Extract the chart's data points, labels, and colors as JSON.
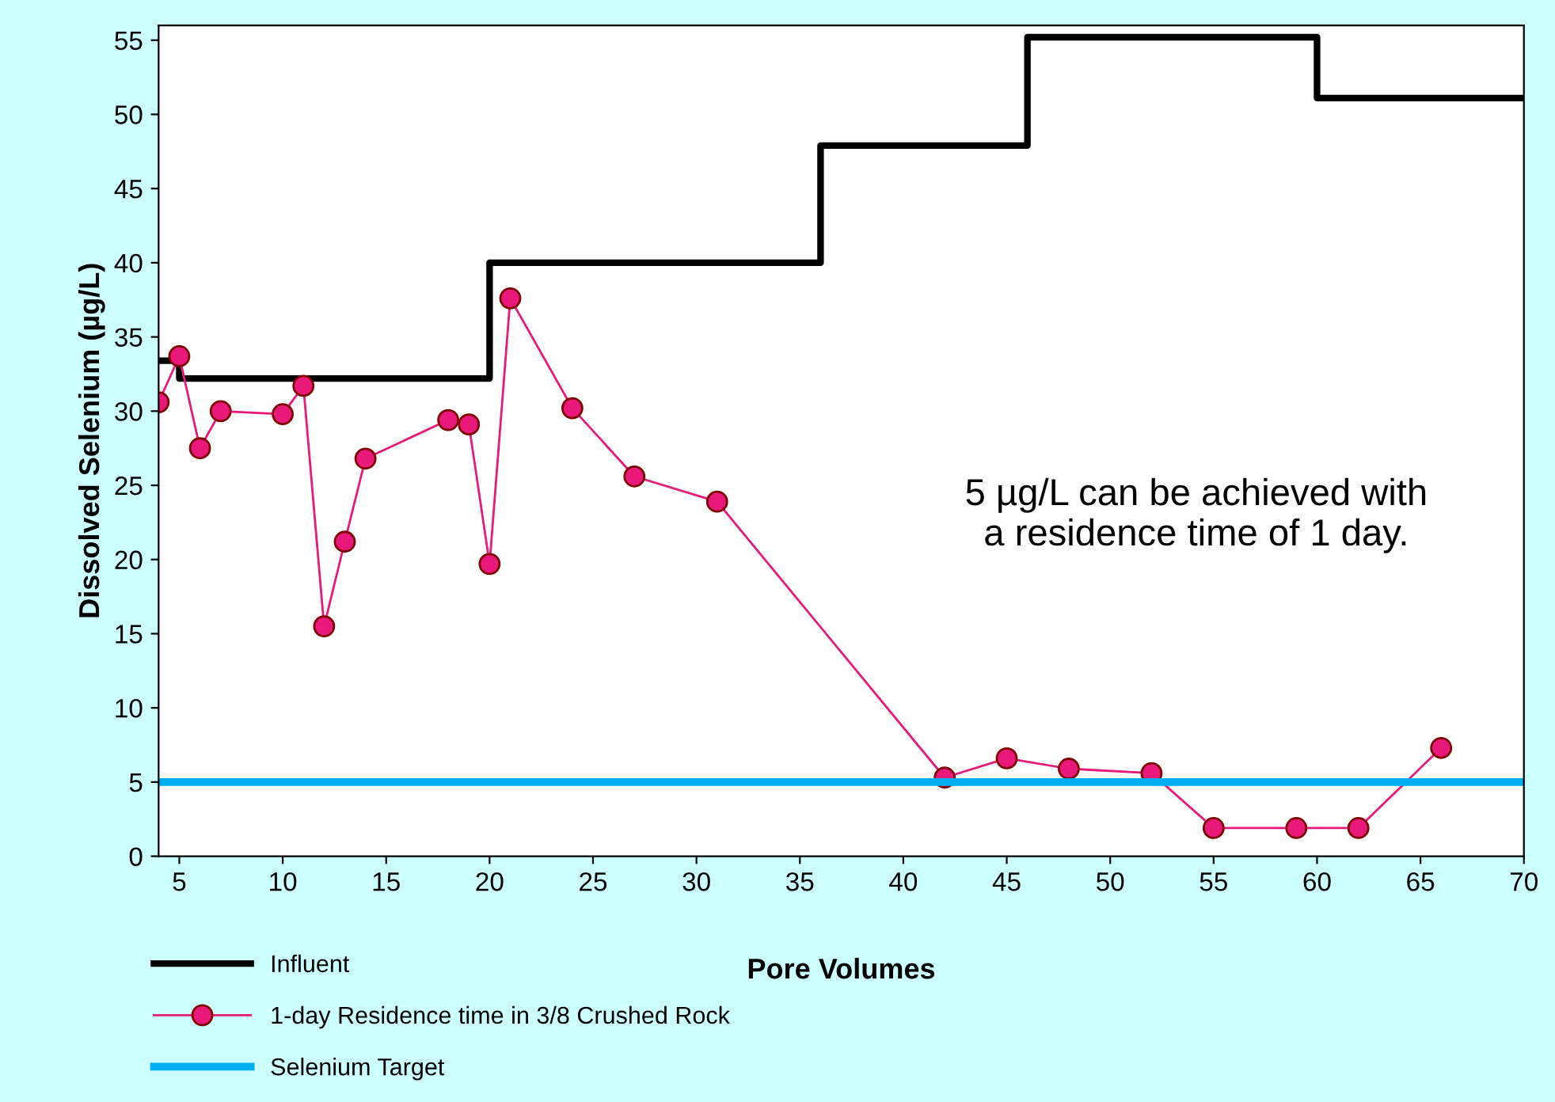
{
  "chart_data": {
    "type": "line",
    "xlabel": "Pore Volumes",
    "ylabel": "Dissolved Selenium (µg/L)",
    "xlim": [
      4,
      70
    ],
    "xticks": [
      5,
      10,
      15,
      20,
      25,
      30,
      35,
      40,
      45,
      50,
      55,
      60,
      65,
      70
    ],
    "ylim": [
      0,
      56
    ],
    "yticks": [
      0,
      5,
      10,
      15,
      20,
      25,
      30,
      35,
      40,
      45,
      50,
      55
    ],
    "series": [
      {
        "name": "Influent",
        "type": "step",
        "color": "#000000",
        "marker": "none",
        "x": [
          4,
          5,
          20,
          36,
          46,
          60,
          70
        ],
        "values": [
          33.4,
          32.2,
          40,
          47.9,
          55.2,
          51.1,
          51.1
        ]
      },
      {
        "name": "1-day Residence time in 3/8 Crushed Rock",
        "color": "#e8197a",
        "marker": "circle",
        "x": [
          4,
          5,
          6,
          7,
          10,
          11,
          12,
          13,
          14,
          18,
          19,
          20,
          21,
          24,
          27,
          31,
          42,
          45,
          48,
          52,
          55,
          59,
          62,
          66
        ],
        "values": [
          30.6,
          33.7,
          27.5,
          30.0,
          29.8,
          31.7,
          15.5,
          21.2,
          26.8,
          29.4,
          29.1,
          19.7,
          37.6,
          30.2,
          25.6,
          23.9,
          5.3,
          6.6,
          5.9,
          5.6,
          1.9,
          1.9,
          1.9,
          7.3
        ]
      }
    ],
    "ref_lines": [
      {
        "axis": "y",
        "value": 5,
        "label": "Selenium Target",
        "color": "#00b0f0"
      }
    ],
    "annotations": [
      "5 µg/L can be achieved with\na residence time of 1 day."
    ],
    "grid": false,
    "legend": "bottom left"
  }
}
